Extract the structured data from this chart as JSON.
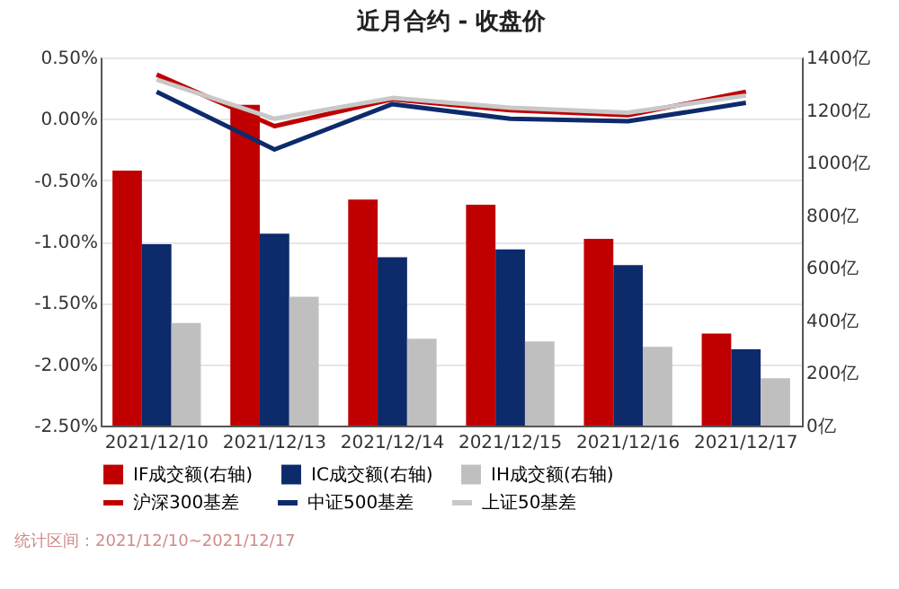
{
  "chart_data": {
    "type": "bar",
    "title": "近月合约 - 收盘价",
    "categories": [
      "2021/12/10",
      "2021/12/13",
      "2021/12/14",
      "2021/12/15",
      "2021/12/16",
      "2021/12/17"
    ],
    "series": [
      {
        "name": "IF成交额(右轴)",
        "axis": "y2",
        "color": "#c00000",
        "values": [
          970,
          1220,
          860,
          840,
          710,
          350
        ]
      },
      {
        "name": "IC成交额(右轴)",
        "axis": "y2",
        "color": "#0d2a6b",
        "values": [
          690,
          730,
          640,
          670,
          610,
          290
        ]
      },
      {
        "name": "IH成交额(右轴)",
        "axis": "y2",
        "color": "#bfbfbf",
        "values": [
          390,
          490,
          330,
          320,
          300,
          180
        ]
      },
      {
        "name": "沪深300基差",
        "type": "line",
        "color": "#c00000",
        "values": [
          0.36,
          -0.06,
          0.16,
          0.07,
          0.03,
          0.22
        ]
      },
      {
        "name": "中证500基差",
        "type": "line",
        "color": "#0d2a6b",
        "values": [
          0.22,
          -0.25,
          0.12,
          0.0,
          -0.02,
          0.13
        ]
      },
      {
        "name": "上证50基差",
        "type": "line",
        "color": "#c8c8c8",
        "values": [
          0.32,
          0.0,
          0.17,
          0.09,
          0.05,
          0.19
        ]
      }
    ],
    "ylim": [
      -2.5,
      0.5
    ],
    "yticks": [
      {
        "value": 0.5,
        "label": "0.50%"
      },
      {
        "value": 0,
        "label": "0.00%"
      },
      {
        "value": -0.5,
        "label": "-0.50%"
      },
      {
        "value": -1,
        "label": "-1.00%"
      },
      {
        "value": -1.5,
        "label": "-1.50%"
      },
      {
        "value": -2,
        "label": "-2.00%"
      },
      {
        "value": -2.5,
        "label": "-2.50%"
      }
    ],
    "y2lim": [
      0,
      1400
    ],
    "y2ticks": [
      {
        "value": 0,
        "label": "0亿"
      },
      {
        "value": 200,
        "label": "200亿"
      },
      {
        "value": 400,
        "label": "400亿"
      },
      {
        "value": 600,
        "label": "600亿"
      },
      {
        "value": 800,
        "label": "800亿"
      },
      {
        "value": 1000,
        "label": "1000亿"
      },
      {
        "value": 1200,
        "label": "1200亿"
      },
      {
        "value": 1400,
        "label": "1400亿"
      }
    ],
    "grid": "y",
    "legend": "bottom",
    "line_style": "solid",
    "annotations": [
      "统计区间：2021/12/10~2021/12/17"
    ]
  }
}
